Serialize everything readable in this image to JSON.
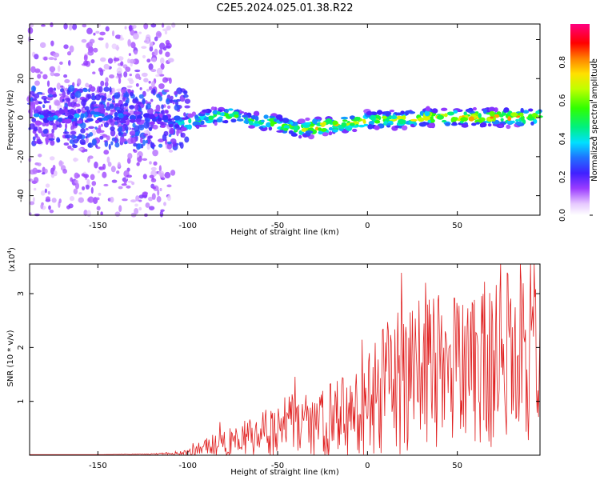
{
  "title": "C2E5.2024.025.01.38.R22",
  "chart_data": [
    {
      "type": "heatmap",
      "xlabel": "Height of straight line (km)",
      "ylabel": "Frequency (Hz)",
      "xlim": [
        -188,
        96
      ],
      "ylim": [
        -50,
        48
      ],
      "x_ticks": [
        -150,
        -100,
        -50,
        0,
        50
      ],
      "y_ticks": [
        -40,
        -20,
        0,
        20,
        40
      ],
      "colorbar": {
        "label": "Normalized spectral amplitude",
        "range": [
          0,
          1
        ],
        "ticks": [
          "0.0",
          "0.2",
          "0.4",
          "0.6",
          "0.8"
        ],
        "colormap": "rainbow (white-violet-blue-cyan-green-yellow-red-magenta)"
      },
      "center_track": {
        "x": [
          -188,
          -150,
          -120,
          -110,
          -100,
          -90,
          -80,
          -75,
          -70,
          -60,
          -50,
          -40,
          -30,
          -20,
          -10,
          0,
          10,
          20,
          30,
          40,
          50,
          60,
          70,
          80,
          90,
          96
        ],
        "frequency_hz": [
          0,
          1,
          0,
          -2,
          -3,
          0,
          1,
          2,
          -1,
          -2,
          -3,
          -6,
          -5,
          -4,
          -3,
          -1,
          -1,
          -1,
          0,
          0,
          0,
          0,
          0,
          0,
          0,
          0
        ],
        "peak_amplitude": [
          0.35,
          0.4,
          0.3,
          0.35,
          0.55,
          0.6,
          0.65,
          0.6,
          0.55,
          0.6,
          0.7,
          0.65,
          0.85,
          0.8,
          0.75,
          0.8,
          0.75,
          0.8,
          0.85,
          0.8,
          0.85,
          0.85,
          0.85,
          0.85,
          0.85,
          0.85
        ]
      },
      "noise_region_x": [
        -188,
        -108
      ]
    },
    {
      "type": "line",
      "xlabel": "Height of straight line (km)",
      "ylabel": "SNR (10 * v/v)",
      "y_multiplier": "(x10^4)",
      "y_multiplier_base": "(x10",
      "y_multiplier_exp": "4",
      "y_multiplier_close": ")",
      "xlim": [
        -188,
        96
      ],
      "ylim": [
        0,
        3.55
      ],
      "x_ticks": [
        -150,
        -100,
        -50,
        0,
        50
      ],
      "y_ticks": [
        1,
        2,
        3
      ],
      "line_color": "#e02020",
      "series": [
        {
          "x": [
            -188,
            -150,
            -120,
            -110,
            -100,
            -95,
            -90,
            -85,
            -80,
            -75,
            -70,
            -65,
            -60,
            -55,
            -50,
            -45,
            -40,
            -35,
            -30,
            -25,
            -20,
            -15,
            -10,
            -5,
            0,
            5,
            10,
            15,
            20,
            25,
            30,
            35,
            40,
            45,
            50,
            55,
            60,
            65,
            70,
            75,
            80,
            85,
            90,
            96
          ],
          "y": [
            0.01,
            0.01,
            0.02,
            0.03,
            0.05,
            0.1,
            0.15,
            0.2,
            0.22,
            0.28,
            0.3,
            0.35,
            0.4,
            0.45,
            0.5,
            0.55,
            0.55,
            0.6,
            0.6,
            0.62,
            0.65,
            0.7,
            0.75,
            0.75,
            0.95,
            1.1,
            1.2,
            1.3,
            1.4,
            1.45,
            1.5,
            1.55,
            1.55,
            1.6,
            1.65,
            1.7,
            1.65,
            1.7,
            1.75,
            1.75,
            1.8,
            1.8,
            1.8,
            1.8
          ],
          "noise_scale": [
            0,
            0,
            0.005,
            0.02,
            0.04,
            0.08,
            0.12,
            0.15,
            0.18,
            0.2,
            0.22,
            0.28,
            0.3,
            0.35,
            0.4,
            0.45,
            0.4,
            0.45,
            0.45,
            0.45,
            0.5,
            0.55,
            0.55,
            0.55,
            0.7,
            0.8,
            0.85,
            0.9,
            1.0,
            1.0,
            1.0,
            1.05,
            1.05,
            1.05,
            1.1,
            1.1,
            1.1,
            1.1,
            1.15,
            1.15,
            1.15,
            1.15,
            1.15,
            1.15
          ]
        }
      ]
    }
  ]
}
